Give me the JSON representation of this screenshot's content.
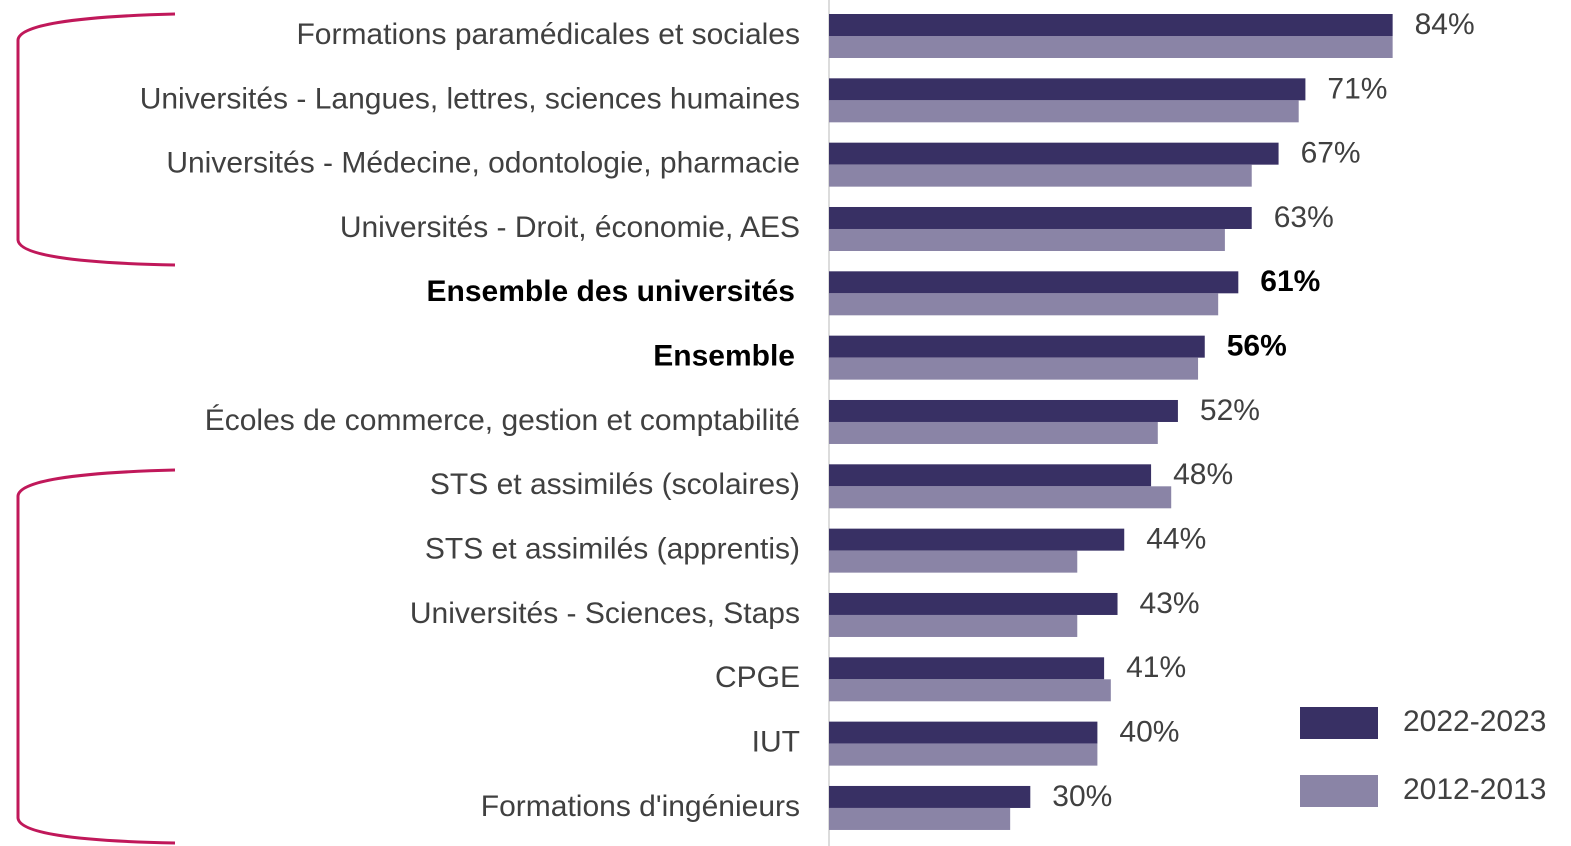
{
  "chart_data": {
    "type": "bar",
    "orientation": "horizontal",
    "categories": [
      "Formations paramédicales et sociales",
      "Universités - Langues, lettres, sciences humaines",
      "Universités - Médecine, odontologie, pharmacie",
      "Universités - Droit, économie, AES",
      "Ensemble des universités",
      "Ensemble",
      "Écoles de commerce, gestion et comptabilité",
      "STS et assimilés (scolaires)",
      "STS et assimilés (apprentis)",
      "Universités - Sciences, Staps",
      "CPGE",
      "IUT",
      "Formations d'ingénieurs"
    ],
    "series": [
      {
        "name": "2022-2023",
        "color": "#383064",
        "values": [
          84,
          71,
          67,
          63,
          61,
          56,
          52,
          48,
          44,
          43,
          41,
          40,
          30
        ],
        "value_labels": [
          "84%",
          "71%",
          "67%",
          "63%",
          "61%",
          "56%",
          "52%",
          "48%",
          "44%",
          "43%",
          "41%",
          "40%",
          "30%"
        ]
      },
      {
        "name": "2012-2013",
        "color": "#8a84a6",
        "values": [
          84,
          70,
          63,
          59,
          58,
          55,
          49,
          51,
          37,
          37,
          42,
          40,
          27
        ]
      }
    ],
    "xlim": [
      0,
      100
    ],
    "legend": "lower right"
  }
}
